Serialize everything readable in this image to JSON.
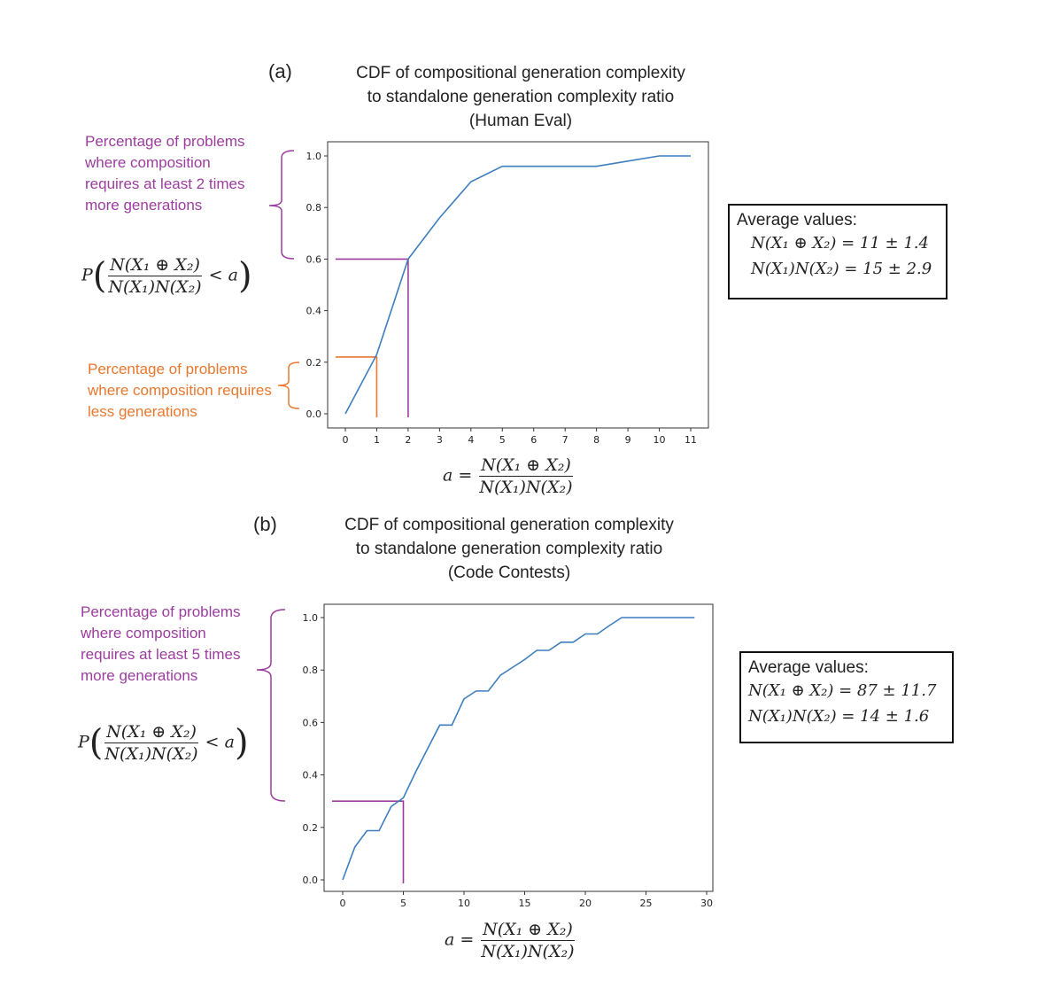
{
  "colors": {
    "line": "#3d7ebf",
    "purple": "#9b3d9e",
    "orange": "#e8782f"
  },
  "panels": [
    {
      "label": "(a)",
      "title_lines": [
        "CDF of compositional generation complexity",
        "to standalone generation complexity ratio",
        "(Human Eval)"
      ],
      "annotation_purple": "Percentage of problems where composition requires at least 2 times more generations",
      "annotation_orange": "Percentage of problems where composition requires less generations",
      "prob_expr": {
        "p": "P",
        "num": "N(X₁ ⊕ X₂)",
        "den": "N(X₁)N(X₂)",
        "rhs": "< a"
      },
      "xlabel": {
        "lhs": "a =",
        "num": "N(X₁ ⊕ X₂)",
        "den": "N(X₁)N(X₂)"
      },
      "avg": {
        "title": "Average values:",
        "line1": "N(X₁ ⊕ X₂) = 11 ± 1.4",
        "line2": "N(X₁)N(X₂) = 15 ± 2.9"
      }
    },
    {
      "label": "(b)",
      "title_lines": [
        "CDF of compositional generation complexity",
        "to standalone generation complexity ratio",
        "(Code Contests)"
      ],
      "annotation_purple": "Percentage of problems where composition requires at least 5 times more generations",
      "prob_expr": {
        "p": "P",
        "num": "N(X₁ ⊕ X₂)",
        "den": "N(X₁)N(X₂)",
        "rhs": "< a"
      },
      "xlabel": {
        "lhs": "a =",
        "num": "N(X₁ ⊕ X₂)",
        "den": "N(X₁)N(X₂)"
      },
      "avg": {
        "title": "Average values:",
        "line1": "N(X₁ ⊕ X₂) = 87 ± 11.7",
        "line2": "N(X₁)N(X₂) = 14 ± 1.6"
      }
    }
  ],
  "chart_data": [
    {
      "type": "line",
      "x": [
        0,
        1,
        2,
        3,
        4,
        5,
        6,
        7,
        8,
        9,
        10,
        11
      ],
      "y": [
        0,
        0.23,
        0.6,
        0.76,
        0.9,
        0.96,
        0.96,
        0.96,
        0.96,
        0.98,
        1.0,
        1.0
      ],
      "xticks": [
        "0",
        "1",
        "2",
        "3",
        "4",
        "5",
        "6",
        "7",
        "8",
        "9",
        "10",
        "11"
      ],
      "yticks": [
        "0.0",
        "0.2",
        "0.4",
        "0.6",
        "0.8",
        "1.0"
      ],
      "ylim": [
        0,
        1
      ],
      "xlim": [
        0,
        11
      ],
      "markers": [
        {
          "x": 1,
          "y": 0.22,
          "color": "orange"
        },
        {
          "x": 2,
          "y": 0.6,
          "color": "purple"
        }
      ]
    },
    {
      "type": "line",
      "x": [
        0,
        1,
        2,
        3,
        4,
        5,
        6,
        7,
        8,
        9,
        10,
        11,
        12,
        13,
        14,
        15,
        16,
        17,
        18,
        19,
        20,
        21,
        22,
        23,
        24,
        25,
        26,
        27,
        28,
        29
      ],
      "y": [
        0,
        0.125,
        0.1875,
        0.1875,
        0.28,
        0.3125,
        0.41,
        0.5,
        0.59,
        0.59,
        0.69,
        0.72,
        0.72,
        0.78,
        0.81,
        0.84,
        0.875,
        0.875,
        0.906,
        0.906,
        0.9375,
        0.9375,
        0.97,
        1,
        1,
        1,
        1,
        1,
        1,
        1
      ],
      "xticks": [
        "0",
        "5",
        "10",
        "15",
        "20",
        "25",
        "30"
      ],
      "yticks": [
        "0.0",
        "0.2",
        "0.4",
        "0.6",
        "0.8",
        "1.0"
      ],
      "ylim": [
        0,
        1
      ],
      "xlim": [
        0,
        30
      ],
      "markers": [
        {
          "x": 5,
          "y": 0.3,
          "color": "purple"
        }
      ]
    }
  ]
}
